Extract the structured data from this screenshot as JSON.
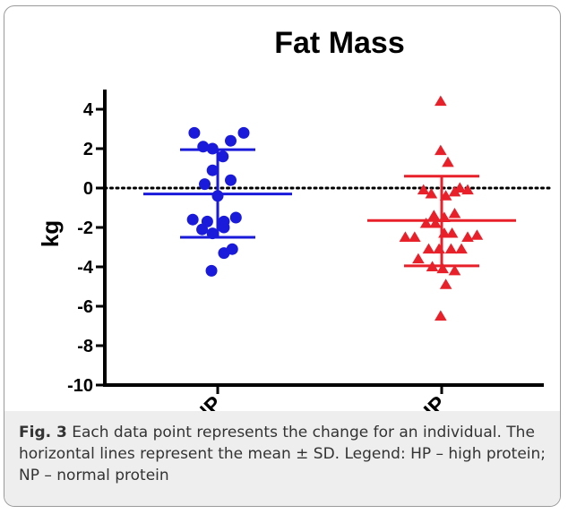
{
  "colors": {
    "np": "#1a1adb",
    "hp": "#e8202a",
    "axis": "#000000"
  },
  "caption": {
    "label": "Fig. 3",
    "text": "Each data point represents the change for an individual. The horizontal lines represent the mean ± SD. Legend: HP – high protein; NP – normal protein"
  },
  "chart_data": {
    "type": "scatter",
    "title": "Fat Mass",
    "xlabel": "",
    "ylabel": "kg",
    "ylim": [
      -10,
      5
    ],
    "yticks": [
      4,
      2,
      0,
      -2,
      -4,
      -6,
      -8,
      -10
    ],
    "categories": [
      "NP",
      "HP"
    ],
    "reference_line": {
      "y": 0,
      "style": "dotted"
    },
    "grid": false,
    "legend": "none",
    "series": [
      {
        "category": "NP",
        "marker": "circle",
        "color": "#1a1adb",
        "mean": -0.3,
        "sd_upper": 1.95,
        "sd_lower": -2.5,
        "points": [
          {
            "x": -0.45,
            "y": 2.8
          },
          {
            "x": -0.28,
            "y": 2.1
          },
          {
            "x": -0.1,
            "y": 2.0
          },
          {
            "x": 0.1,
            "y": 1.6
          },
          {
            "x": 0.25,
            "y": 2.4
          },
          {
            "x": 0.5,
            "y": 2.8
          },
          {
            "x": -0.1,
            "y": 0.9
          },
          {
            "x": -0.25,
            "y": 0.2
          },
          {
            "x": 0.25,
            "y": 0.4
          },
          {
            "x": 0.0,
            "y": -0.4
          },
          {
            "x": -0.48,
            "y": -1.6
          },
          {
            "x": -0.2,
            "y": -1.7
          },
          {
            "x": 0.12,
            "y": -1.7
          },
          {
            "x": 0.35,
            "y": -1.5
          },
          {
            "x": -0.3,
            "y": -2.1
          },
          {
            "x": -0.1,
            "y": -2.3
          },
          {
            "x": 0.12,
            "y": -2.0
          },
          {
            "x": 0.12,
            "y": -3.3
          },
          {
            "x": 0.28,
            "y": -3.1
          },
          {
            "x": -0.12,
            "y": -4.2
          }
        ]
      },
      {
        "category": "HP",
        "marker": "triangle",
        "color": "#e8202a",
        "mean": -1.65,
        "sd_upper": 0.6,
        "sd_lower": -3.95,
        "points": [
          {
            "x": -0.02,
            "y": 4.4
          },
          {
            "x": -0.02,
            "y": 1.9
          },
          {
            "x": 0.12,
            "y": 1.3
          },
          {
            "x": -0.35,
            "y": -0.1
          },
          {
            "x": 0.5,
            "y": -0.1
          },
          {
            "x": -0.2,
            "y": -0.3
          },
          {
            "x": 0.25,
            "y": -0.2
          },
          {
            "x": 0.35,
            "y": 0.0
          },
          {
            "x": 0.08,
            "y": -0.4
          },
          {
            "x": -0.15,
            "y": -1.4
          },
          {
            "x": 0.05,
            "y": -1.5
          },
          {
            "x": 0.25,
            "y": -1.3
          },
          {
            "x": -0.3,
            "y": -1.8
          },
          {
            "x": -0.12,
            "y": -1.8
          },
          {
            "x": 0.05,
            "y": -2.3
          },
          {
            "x": 0.2,
            "y": -2.3
          },
          {
            "x": -0.7,
            "y": -2.5
          },
          {
            "x": -0.52,
            "y": -2.5
          },
          {
            "x": 0.5,
            "y": -2.5
          },
          {
            "x": 0.68,
            "y": -2.4
          },
          {
            "x": -0.25,
            "y": -3.1
          },
          {
            "x": -0.05,
            "y": -3.1
          },
          {
            "x": 0.18,
            "y": -3.1
          },
          {
            "x": 0.38,
            "y": -3.1
          },
          {
            "x": -0.45,
            "y": -3.6
          },
          {
            "x": -0.18,
            "y": -4.0
          },
          {
            "x": 0.02,
            "y": -4.1
          },
          {
            "x": 0.25,
            "y": -4.2
          },
          {
            "x": 0.08,
            "y": -4.9
          },
          {
            "x": -0.02,
            "y": -6.5
          }
        ]
      }
    ]
  }
}
